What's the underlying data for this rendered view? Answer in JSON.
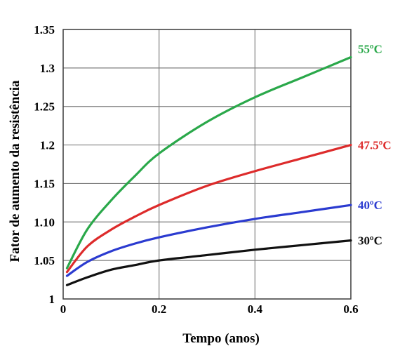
{
  "chart_data": {
    "type": "line",
    "title": "",
    "xlabel": "Tempo (anos)",
    "ylabel": "Fator de aumento da resistência",
    "xlim": [
      0,
      0.6
    ],
    "ylim": [
      1,
      1.35
    ],
    "x_ticks": [
      {
        "value": 0,
        "label": "0"
      },
      {
        "value": 0.2,
        "label": "0.2"
      },
      {
        "value": 0.4,
        "label": "0.4"
      },
      {
        "value": 0.6,
        "label": "0.6"
      }
    ],
    "y_ticks": [
      {
        "value": 1,
        "label": "1"
      },
      {
        "value": 1.05,
        "label": "1.05"
      },
      {
        "value": 1.1,
        "label": "1.10"
      },
      {
        "value": 1.15,
        "label": "1.15"
      },
      {
        "value": 1.2,
        "label": "1.2"
      },
      {
        "value": 1.25,
        "label": "1.25"
      },
      {
        "value": 1.3,
        "label": "1.3"
      },
      {
        "value": 1.35,
        "label": "1.35"
      }
    ],
    "grid": true,
    "series": [
      {
        "name": "55ºC",
        "color": "#2aa84a",
        "x": [
          0.008,
          0.05,
          0.1,
          0.15,
          0.2,
          0.3,
          0.4,
          0.5,
          0.6
        ],
        "y": [
          1.04,
          1.09,
          1.128,
          1.16,
          1.189,
          1.23,
          1.262,
          1.288,
          1.314
        ]
      },
      {
        "name": "47.5ºC",
        "color": "#dd2b2b",
        "x": [
          0.008,
          0.05,
          0.1,
          0.15,
          0.2,
          0.3,
          0.4,
          0.5,
          0.6
        ],
        "y": [
          1.035,
          1.068,
          1.09,
          1.107,
          1.122,
          1.147,
          1.166,
          1.183,
          1.2
        ]
      },
      {
        "name": "40ºC",
        "color": "#2b3bd0",
        "x": [
          0.008,
          0.05,
          0.1,
          0.15,
          0.2,
          0.3,
          0.4,
          0.5,
          0.6
        ],
        "y": [
          1.03,
          1.048,
          1.062,
          1.072,
          1.08,
          1.093,
          1.104,
          1.113,
          1.122
        ]
      },
      {
        "name": "30ºC",
        "color": "#111111",
        "x": [
          0.008,
          0.05,
          0.1,
          0.15,
          0.2,
          0.3,
          0.4,
          0.5,
          0.6
        ],
        "y": [
          1.018,
          1.028,
          1.038,
          1.044,
          1.05,
          1.057,
          1.064,
          1.07,
          1.076
        ]
      }
    ]
  }
}
